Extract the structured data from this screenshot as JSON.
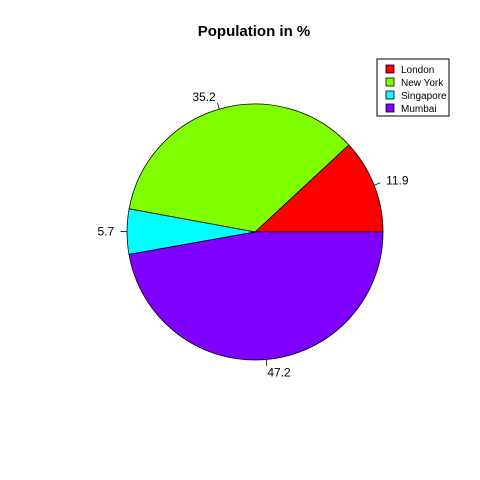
{
  "chart_data": {
    "type": "pie",
    "title": "Population in %",
    "categories": [
      "London",
      "New York",
      "Singapore",
      "Mumbai"
    ],
    "values": [
      11.9,
      35.2,
      5.7,
      47.2
    ],
    "labels": [
      "11.9",
      "35.2",
      "5.7",
      "47.2"
    ],
    "colors": [
      "#ff0000",
      "#80ff00",
      "#00ffff",
      "#8000ff"
    ],
    "legend_position": "top-right",
    "start_angle_deg": 0,
    "direction": "counterclockwise"
  }
}
